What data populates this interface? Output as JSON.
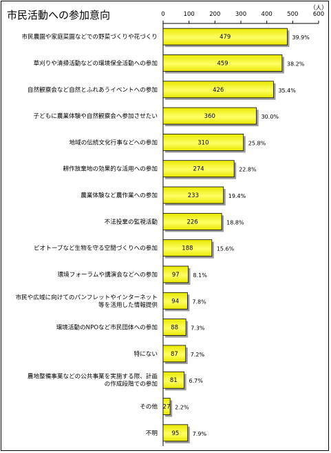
{
  "chart_data": {
    "type": "bar",
    "orientation": "horizontal",
    "title": "市民活動への参加意向",
    "unit": "（人）",
    "xlim": [
      0,
      600
    ],
    "ticks": [
      0,
      100,
      200,
      300,
      400,
      500,
      600
    ],
    "grid": false,
    "legend": "none",
    "bar_color": "#FFFF66",
    "bar_gradient_dark": "#E8E800",
    "shadow_color": "#9A9A9A",
    "categories": [
      [
        "市民農園や家庭菜園などでの野菜づくりや花づくり"
      ],
      [
        "草刈りや清掃活動などの環境保全活動への参加"
      ],
      [
        "自然観察会など自然とふれあうイベントへの参加"
      ],
      [
        "子どもに農業体験や自然観察会へ参加させたい"
      ],
      [
        "地域の伝統文化行事などへの参加"
      ],
      [
        "耕作放棄地の効果的な活用への参加"
      ],
      [
        "農業体験など農作業への参加"
      ],
      [
        "不法投棄の監視活動"
      ],
      [
        "ビオトープなど生物を守る空間づくりへの参加"
      ],
      [
        "環境フォーラムや講演会などへの参加"
      ],
      [
        "市民や広域に向けてのパンフレットやインターネット",
        "等を活用した情報提供"
      ],
      [
        "環境活動のNPOなど市民団体への参加"
      ],
      [
        "特にない"
      ],
      [
        "農地整備事業などの公共事業を実施する際、計画",
        "の作成段階での参加"
      ],
      [
        "その他"
      ],
      [
        "不明"
      ]
    ],
    "values": [
      479,
      459,
      426,
      360,
      310,
      274,
      233,
      226,
      188,
      97,
      94,
      88,
      87,
      81,
      27,
      95
    ],
    "percentages": [
      "39.9%",
      "38.2%",
      "35.4%",
      "30.0%",
      "25.8%",
      "22.8%",
      "19.4%",
      "18.8%",
      "15.6%",
      "8.1%",
      "7.8%",
      "7.3%",
      "7.2%",
      "6.7%",
      "2.2%",
      "7.9%"
    ]
  }
}
